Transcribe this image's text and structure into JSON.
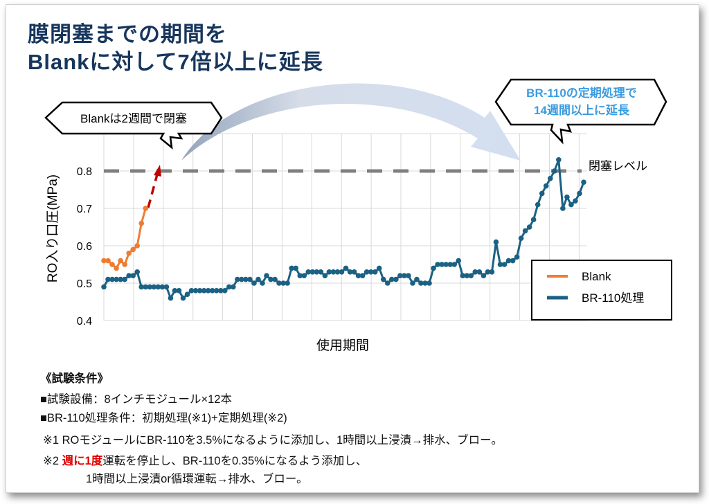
{
  "title_line1": "膜閉塞までの期間を",
  "title_line2": "Blankに対して7倍以上に延長",
  "callout_left": "Blankは2週間で閉塞",
  "callout_right_line1": "BR-110の定期処理で",
  "callout_right_line2": "14週間以上に延長",
  "conditions": {
    "heading": "《試験条件》",
    "line1": "■試験設備：8インチモジュール×12本",
    "line2": "■BR-110処理条件：初期処理(※1)+定期処理(※2)",
    "note1": "※1 ROモジュールにBR-110を3.5%になるように添加し、1時間以上浸漬→排水、ブロー。",
    "note2_prefix": "※2 ",
    "note2_highlight": "週に1度",
    "note2_rest": "運転を停止し、BR-110を0.35%になるよう添加し、",
    "note2_line2": "1時間以上浸漬or循環運転→排水、ブロー。"
  },
  "colors": {
    "blank": "#ed7d31",
    "br110": "#1b6183",
    "threshold": "#7f7f7f",
    "highlight": "#e00000",
    "title": "#17365d",
    "callout_blue": "#3b9be0"
  },
  "chart_data": {
    "type": "line",
    "xlabel": "使用期間",
    "ylabel": "RO入り口圧(MPa)",
    "ylim": [
      0.4,
      0.9
    ],
    "yticks": [
      "0.4",
      "0.5",
      "0.6",
      "0.7",
      "0.8"
    ],
    "grid": true,
    "legend_position": "right",
    "threshold": {
      "value": 0.8,
      "label": "閉塞レベル"
    },
    "series": [
      {
        "name": "Blank",
        "values": [
          0.56,
          0.56,
          0.55,
          0.54,
          0.56,
          0.55,
          0.58,
          0.59,
          0.6,
          0.66,
          0.7
        ]
      },
      {
        "name": "BR-110処理",
        "values": [
          0.49,
          0.51,
          0.51,
          0.51,
          0.51,
          0.51,
          0.52,
          0.52,
          0.53,
          0.49,
          0.49,
          0.49,
          0.49,
          0.49,
          0.49,
          0.49,
          0.46,
          0.48,
          0.48,
          0.46,
          0.47,
          0.48,
          0.48,
          0.48,
          0.48,
          0.48,
          0.48,
          0.48,
          0.48,
          0.48,
          0.49,
          0.49,
          0.51,
          0.51,
          0.51,
          0.51,
          0.5,
          0.51,
          0.5,
          0.52,
          0.51,
          0.51,
          0.5,
          0.5,
          0.5,
          0.54,
          0.54,
          0.52,
          0.52,
          0.53,
          0.53,
          0.53,
          0.53,
          0.52,
          0.53,
          0.53,
          0.53,
          0.53,
          0.54,
          0.53,
          0.53,
          0.52,
          0.52,
          0.53,
          0.53,
          0.53,
          0.54,
          0.51,
          0.5,
          0.51,
          0.51,
          0.52,
          0.52,
          0.52,
          0.5,
          0.51,
          0.5,
          0.5,
          0.5,
          0.54,
          0.55,
          0.55,
          0.55,
          0.55,
          0.55,
          0.56,
          0.52,
          0.52,
          0.52,
          0.53,
          0.53,
          0.52,
          0.53,
          0.53,
          0.61,
          0.55,
          0.55,
          0.56,
          0.56,
          0.57,
          0.62,
          0.64,
          0.65,
          0.67,
          0.71,
          0.74,
          0.76,
          0.78,
          0.8,
          0.83,
          0.7,
          0.73,
          0.71,
          0.72,
          0.74,
          0.77
        ]
      }
    ]
  }
}
